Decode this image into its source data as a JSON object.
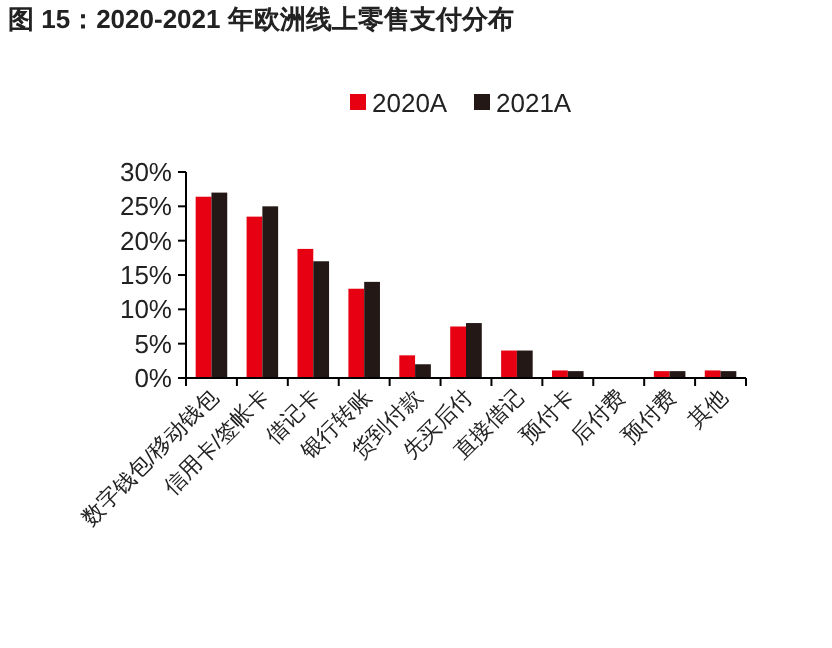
{
  "chart_data": {
    "type": "bar",
    "title": "图 15：2020-2021 年欧洲线上零售支付分布",
    "categories": [
      "数字钱包/移动钱包",
      "信用卡/签帐卡",
      "借记卡",
      "银行转账",
      "货到付款",
      "先买后付",
      "直接借记",
      "预付卡",
      "后付费",
      "预付费",
      "其他"
    ],
    "series": [
      {
        "name": "2020A",
        "color": "#e60012",
        "values": [
          26.4,
          23.5,
          18.8,
          13,
          3.3,
          7.5,
          4,
          1.1,
          0,
          1,
          1.1
        ]
      },
      {
        "name": "2021A",
        "color": "#231815",
        "values": [
          27,
          25,
          17,
          14,
          2,
          8,
          4,
          1,
          0,
          1,
          1
        ]
      }
    ],
    "ylim": [
      0,
      30
    ],
    "yticks": [
      {
        "value": 0,
        "label": "0%"
      },
      {
        "value": 5,
        "label": "5%"
      },
      {
        "value": 10,
        "label": "10%"
      },
      {
        "value": 15,
        "label": "15%"
      },
      {
        "value": 20,
        "label": "20%"
      },
      {
        "value": 25,
        "label": "25%"
      },
      {
        "value": 30,
        "label": "30%"
      }
    ],
    "legend": "top"
  }
}
